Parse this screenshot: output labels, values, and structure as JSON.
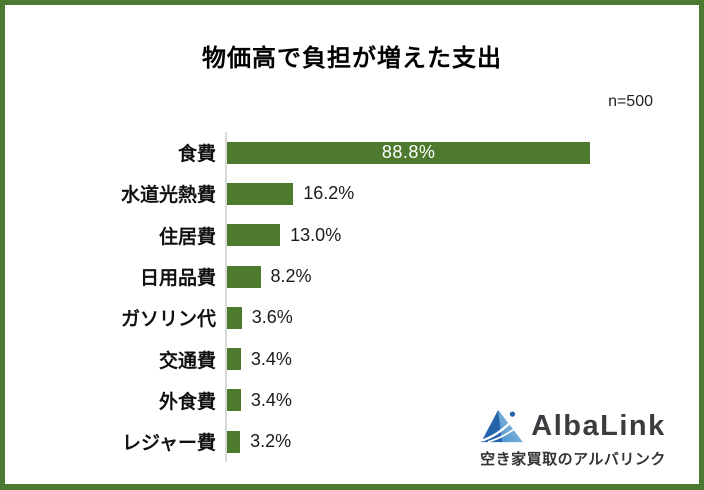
{
  "title": "物価高で負担が増えた支出",
  "sample_size": "n=500",
  "colors": {
    "bar": "#4e7a2f",
    "frame": "#4d7a33",
    "axis": "#d9d9d9",
    "text": "#1a1a1a",
    "value_label_inside": "#ffffff",
    "logo_dark_blue": "#2563ab",
    "logo_light_blue": "#8ec1e4",
    "logo_text": "#3b3b40"
  },
  "chart_data": {
    "type": "bar",
    "orientation": "horizontal",
    "title": "物価高で負担が増えた支出",
    "sample_size": "n=500",
    "categories": [
      "食費",
      "水道光熱費",
      "住居費",
      "日用品費",
      "ガソリン代",
      "交通費",
      "外食費",
      "レジャー費"
    ],
    "values": [
      88.8,
      16.2,
      13.0,
      8.2,
      3.6,
      3.4,
      3.4,
      3.2
    ],
    "value_labels": [
      "88.8%",
      "16.2%",
      "13.0%",
      "8.2%",
      "3.6%",
      "3.4%",
      "3.4%",
      "3.2%"
    ],
    "unit": "%",
    "xlim": [
      0,
      100
    ],
    "grid": false,
    "legend": "none",
    "value_label_position": "largest bar labeled inside (white), others outside right (dark)"
  },
  "logo": {
    "brand": "AlbaLink",
    "tagline": "空き家買取のアルバリンク"
  }
}
